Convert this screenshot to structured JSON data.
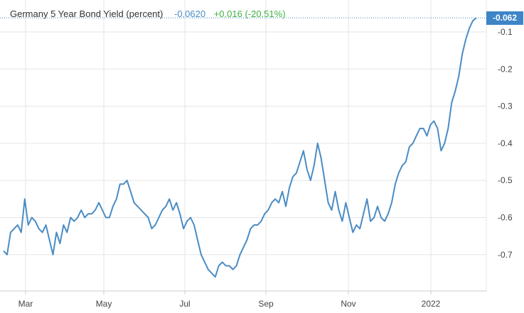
{
  "legend": {
    "title": "Germany 5 Year Bond Yield (percent)",
    "value": "-0.0620",
    "change": "+0.016 (-20.51%)"
  },
  "last_label": "-0.062",
  "colors": {
    "line": "#4a8cc4",
    "value_text": "#4a8cc4",
    "change_text": "#3fb13f",
    "tag_bg": "#3d85c6",
    "grid": "#e6e6e6",
    "axis": "#cccccc"
  },
  "chart_data": {
    "type": "line",
    "title": "Germany 5 Year Bond Yield (percent)",
    "x_ticks": [
      "Mar",
      "May",
      "Jul",
      "Sep",
      "Nov",
      "2022"
    ],
    "y_ticks": [
      -0.1,
      -0.2,
      -0.3,
      -0.4,
      -0.5,
      -0.6,
      -0.7
    ],
    "ylim": [
      -0.8,
      -0.06
    ],
    "grid": true,
    "series": [
      {
        "name": "Germany 5 Year Bond Yield",
        "x": [
          0,
          5,
          10,
          15,
          20,
          25,
          30,
          35,
          40,
          45,
          50,
          55,
          60,
          65,
          70,
          75,
          80,
          85,
          90,
          95,
          100,
          105,
          110,
          115,
          120,
          125,
          130,
          135,
          140,
          145,
          150,
          155,
          160,
          165,
          170,
          175,
          180,
          185,
          190,
          195,
          200,
          205,
          210,
          215,
          220,
          225,
          230,
          235,
          240,
          245,
          250,
          255,
          260,
          265,
          270,
          275,
          280,
          285,
          290,
          295,
          300,
          305,
          310,
          315,
          320,
          325,
          330,
          335,
          340,
          345,
          350,
          355,
          360,
          365,
          370,
          375,
          380,
          385,
          390,
          395,
          400,
          405,
          410,
          415,
          420,
          425,
          430,
          435,
          440,
          445,
          450,
          455,
          460,
          465,
          470,
          475,
          480,
          485,
          490,
          495,
          500,
          505,
          510,
          515,
          520,
          525,
          530,
          535,
          540,
          545,
          550,
          555,
          560,
          565,
          570,
          575,
          580,
          585,
          590,
          595,
          600,
          605,
          610,
          615,
          620,
          625,
          630,
          635,
          640,
          645,
          650,
          655,
          660,
          665,
          670
        ],
        "values": [
          -0.69,
          -0.7,
          -0.64,
          -0.63,
          -0.62,
          -0.64,
          -0.55,
          -0.62,
          -0.6,
          -0.61,
          -0.63,
          -0.64,
          -0.62,
          -0.66,
          -0.7,
          -0.64,
          -0.67,
          -0.62,
          -0.64,
          -0.6,
          -0.61,
          -0.6,
          -0.58,
          -0.6,
          -0.59,
          -0.59,
          -0.58,
          -0.56,
          -0.58,
          -0.6,
          -0.6,
          -0.57,
          -0.55,
          -0.51,
          -0.51,
          -0.5,
          -0.53,
          -0.56,
          -0.57,
          -0.58,
          -0.59,
          -0.6,
          -0.63,
          -0.62,
          -0.6,
          -0.58,
          -0.57,
          -0.55,
          -0.58,
          -0.56,
          -0.59,
          -0.63,
          -0.61,
          -0.6,
          -0.62,
          -0.66,
          -0.7,
          -0.72,
          -0.74,
          -0.75,
          -0.76,
          -0.73,
          -0.72,
          -0.73,
          -0.73,
          -0.74,
          -0.73,
          -0.7,
          -0.68,
          -0.66,
          -0.63,
          -0.62,
          -0.62,
          -0.61,
          -0.59,
          -0.58,
          -0.56,
          -0.55,
          -0.56,
          -0.53,
          -0.57,
          -0.52,
          -0.49,
          -0.48,
          -0.45,
          -0.42,
          -0.47,
          -0.5,
          -0.46,
          -0.4,
          -0.44,
          -0.5,
          -0.56,
          -0.58,
          -0.53,
          -0.58,
          -0.61,
          -0.56,
          -0.6,
          -0.64,
          -0.62,
          -0.63,
          -0.59,
          -0.55,
          -0.61,
          -0.6,
          -0.57,
          -0.6,
          -0.61,
          -0.59,
          -0.56,
          -0.51,
          -0.48,
          -0.46,
          -0.45,
          -0.41,
          -0.4,
          -0.38,
          -0.36,
          -0.36,
          -0.38,
          -0.35,
          -0.34,
          -0.36,
          -0.42,
          -0.4,
          -0.36,
          -0.29,
          -0.26,
          -0.22,
          -0.16,
          -0.12,
          -0.09,
          -0.07,
          -0.062
        ]
      }
    ]
  }
}
